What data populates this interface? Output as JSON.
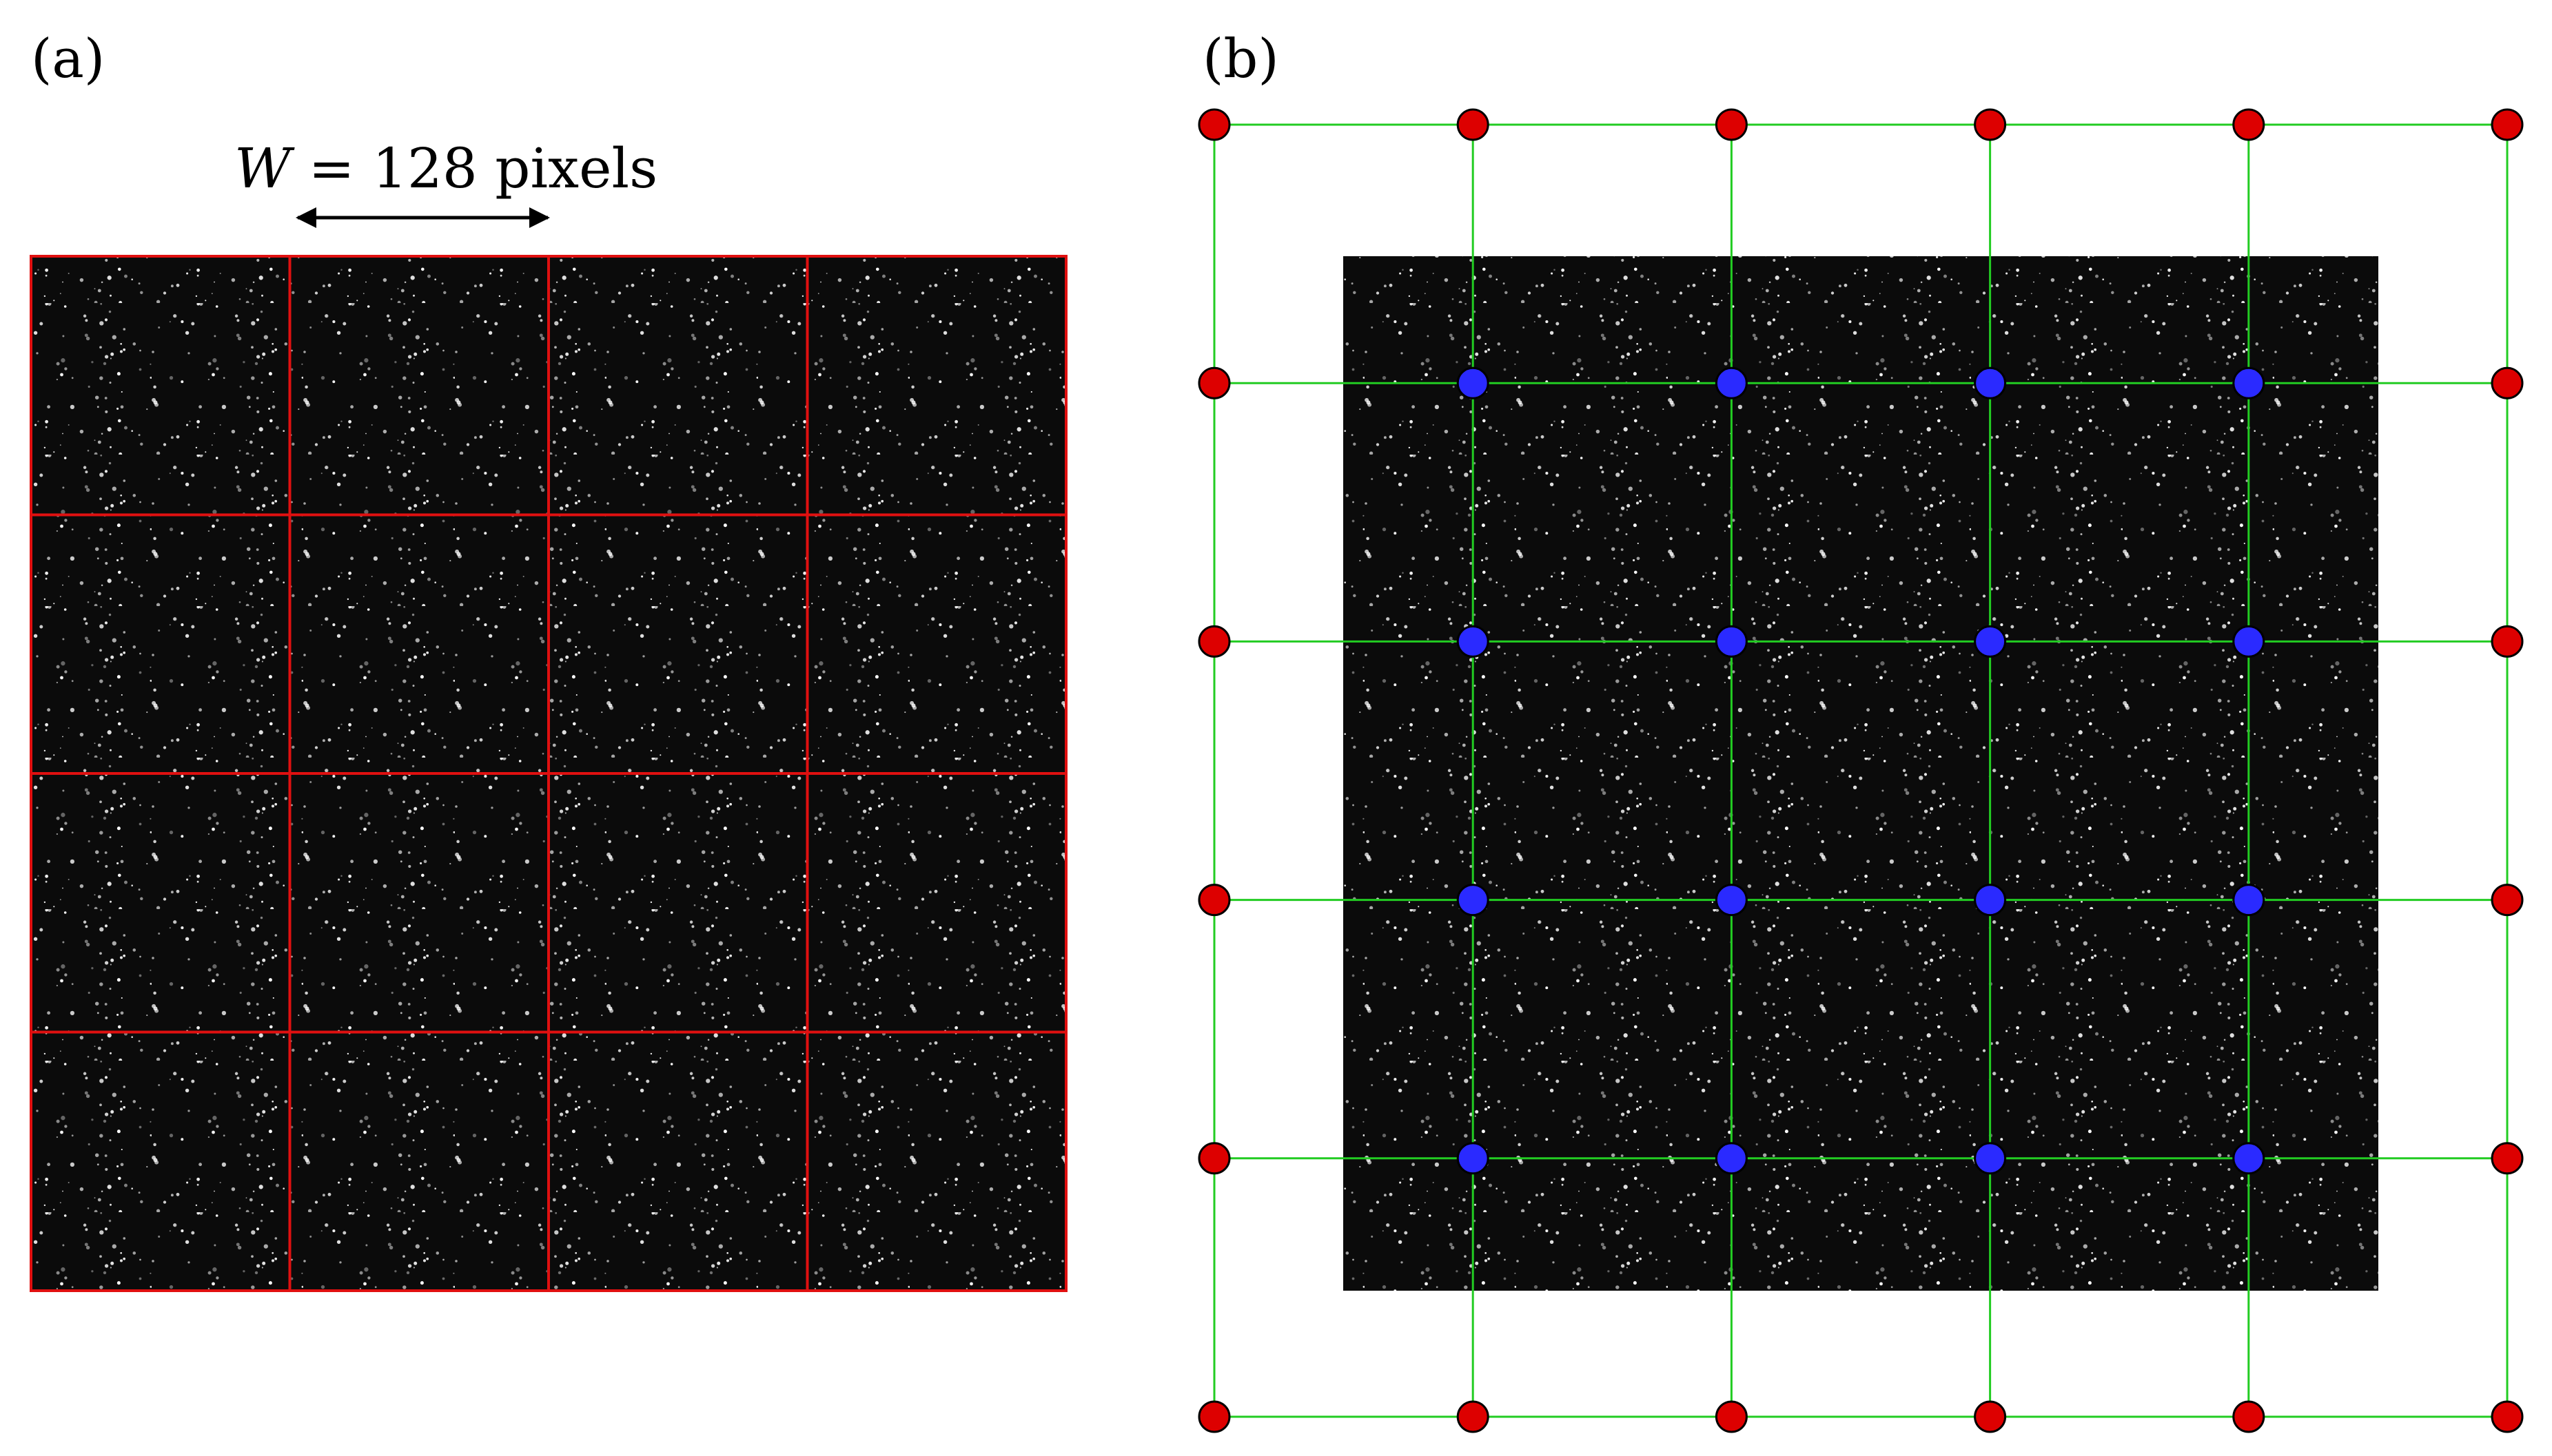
{
  "panel_a": {
    "label": "(a)",
    "window_label_var": "W",
    "window_label_eq": " = 128 pixels",
    "grid": {
      "rows": 4,
      "cols": 4,
      "line_color": "#e01010"
    }
  },
  "panel_b": {
    "label": "(b)",
    "grid": {
      "nodes_per_side": 6,
      "line_color": "#22cc22",
      "boundary_node_color": "#dd0000",
      "interior_node_color": "#2a2aff"
    }
  },
  "colors": {
    "image_background": "#0b0b0b",
    "particle": "#ffffff"
  }
}
